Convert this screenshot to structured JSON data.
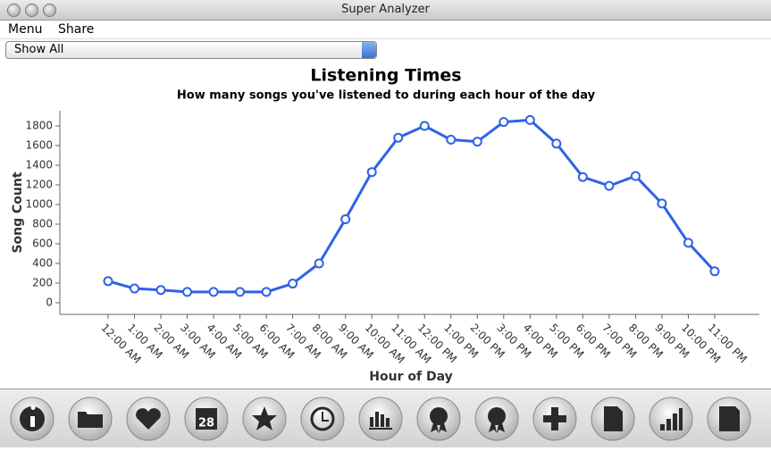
{
  "window": {
    "title": "Super Analyzer"
  },
  "menu": {
    "items": [
      "Menu",
      "Share"
    ]
  },
  "filter": {
    "selected": "Show All"
  },
  "chart_data": {
    "type": "line",
    "title": "Listening Times",
    "subtitle": "How many songs you've listened to during each hour of the day",
    "x_label": "Hour of Day",
    "y_label": "Song Count",
    "categories": [
      "12:00 AM",
      "1:00 AM",
      "2:00 AM",
      "3:00 AM",
      "4:00 AM",
      "5:00 AM",
      "6:00 AM",
      "7:00 AM",
      "8:00 AM",
      "9:00 AM",
      "10:00 AM",
      "11:00 AM",
      "12:00 PM",
      "1:00 PM",
      "2:00 PM",
      "3:00 PM",
      "4:00 PM",
      "5:00 PM",
      "6:00 PM",
      "7:00 PM",
      "8:00 PM",
      "9:00 PM",
      "10:00 PM",
      "11:00 PM"
    ],
    "series": [
      {
        "name": "Song Count",
        "color": "#2f62e8",
        "values": [
          220,
          145,
          130,
          110,
          110,
          110,
          110,
          195,
          400,
          850,
          1330,
          1680,
          1800,
          1660,
          1640,
          1840,
          1860,
          1620,
          1280,
          1190,
          1290,
          1010,
          610,
          320
        ]
      }
    ],
    "ylim": [
      -120,
      1950
    ],
    "yticks": [
      0,
      200,
      400,
      600,
      800,
      1000,
      1200,
      1400,
      1600,
      1800
    ],
    "grid": false
  },
  "toolbar": {
    "calendar_day": "28"
  }
}
